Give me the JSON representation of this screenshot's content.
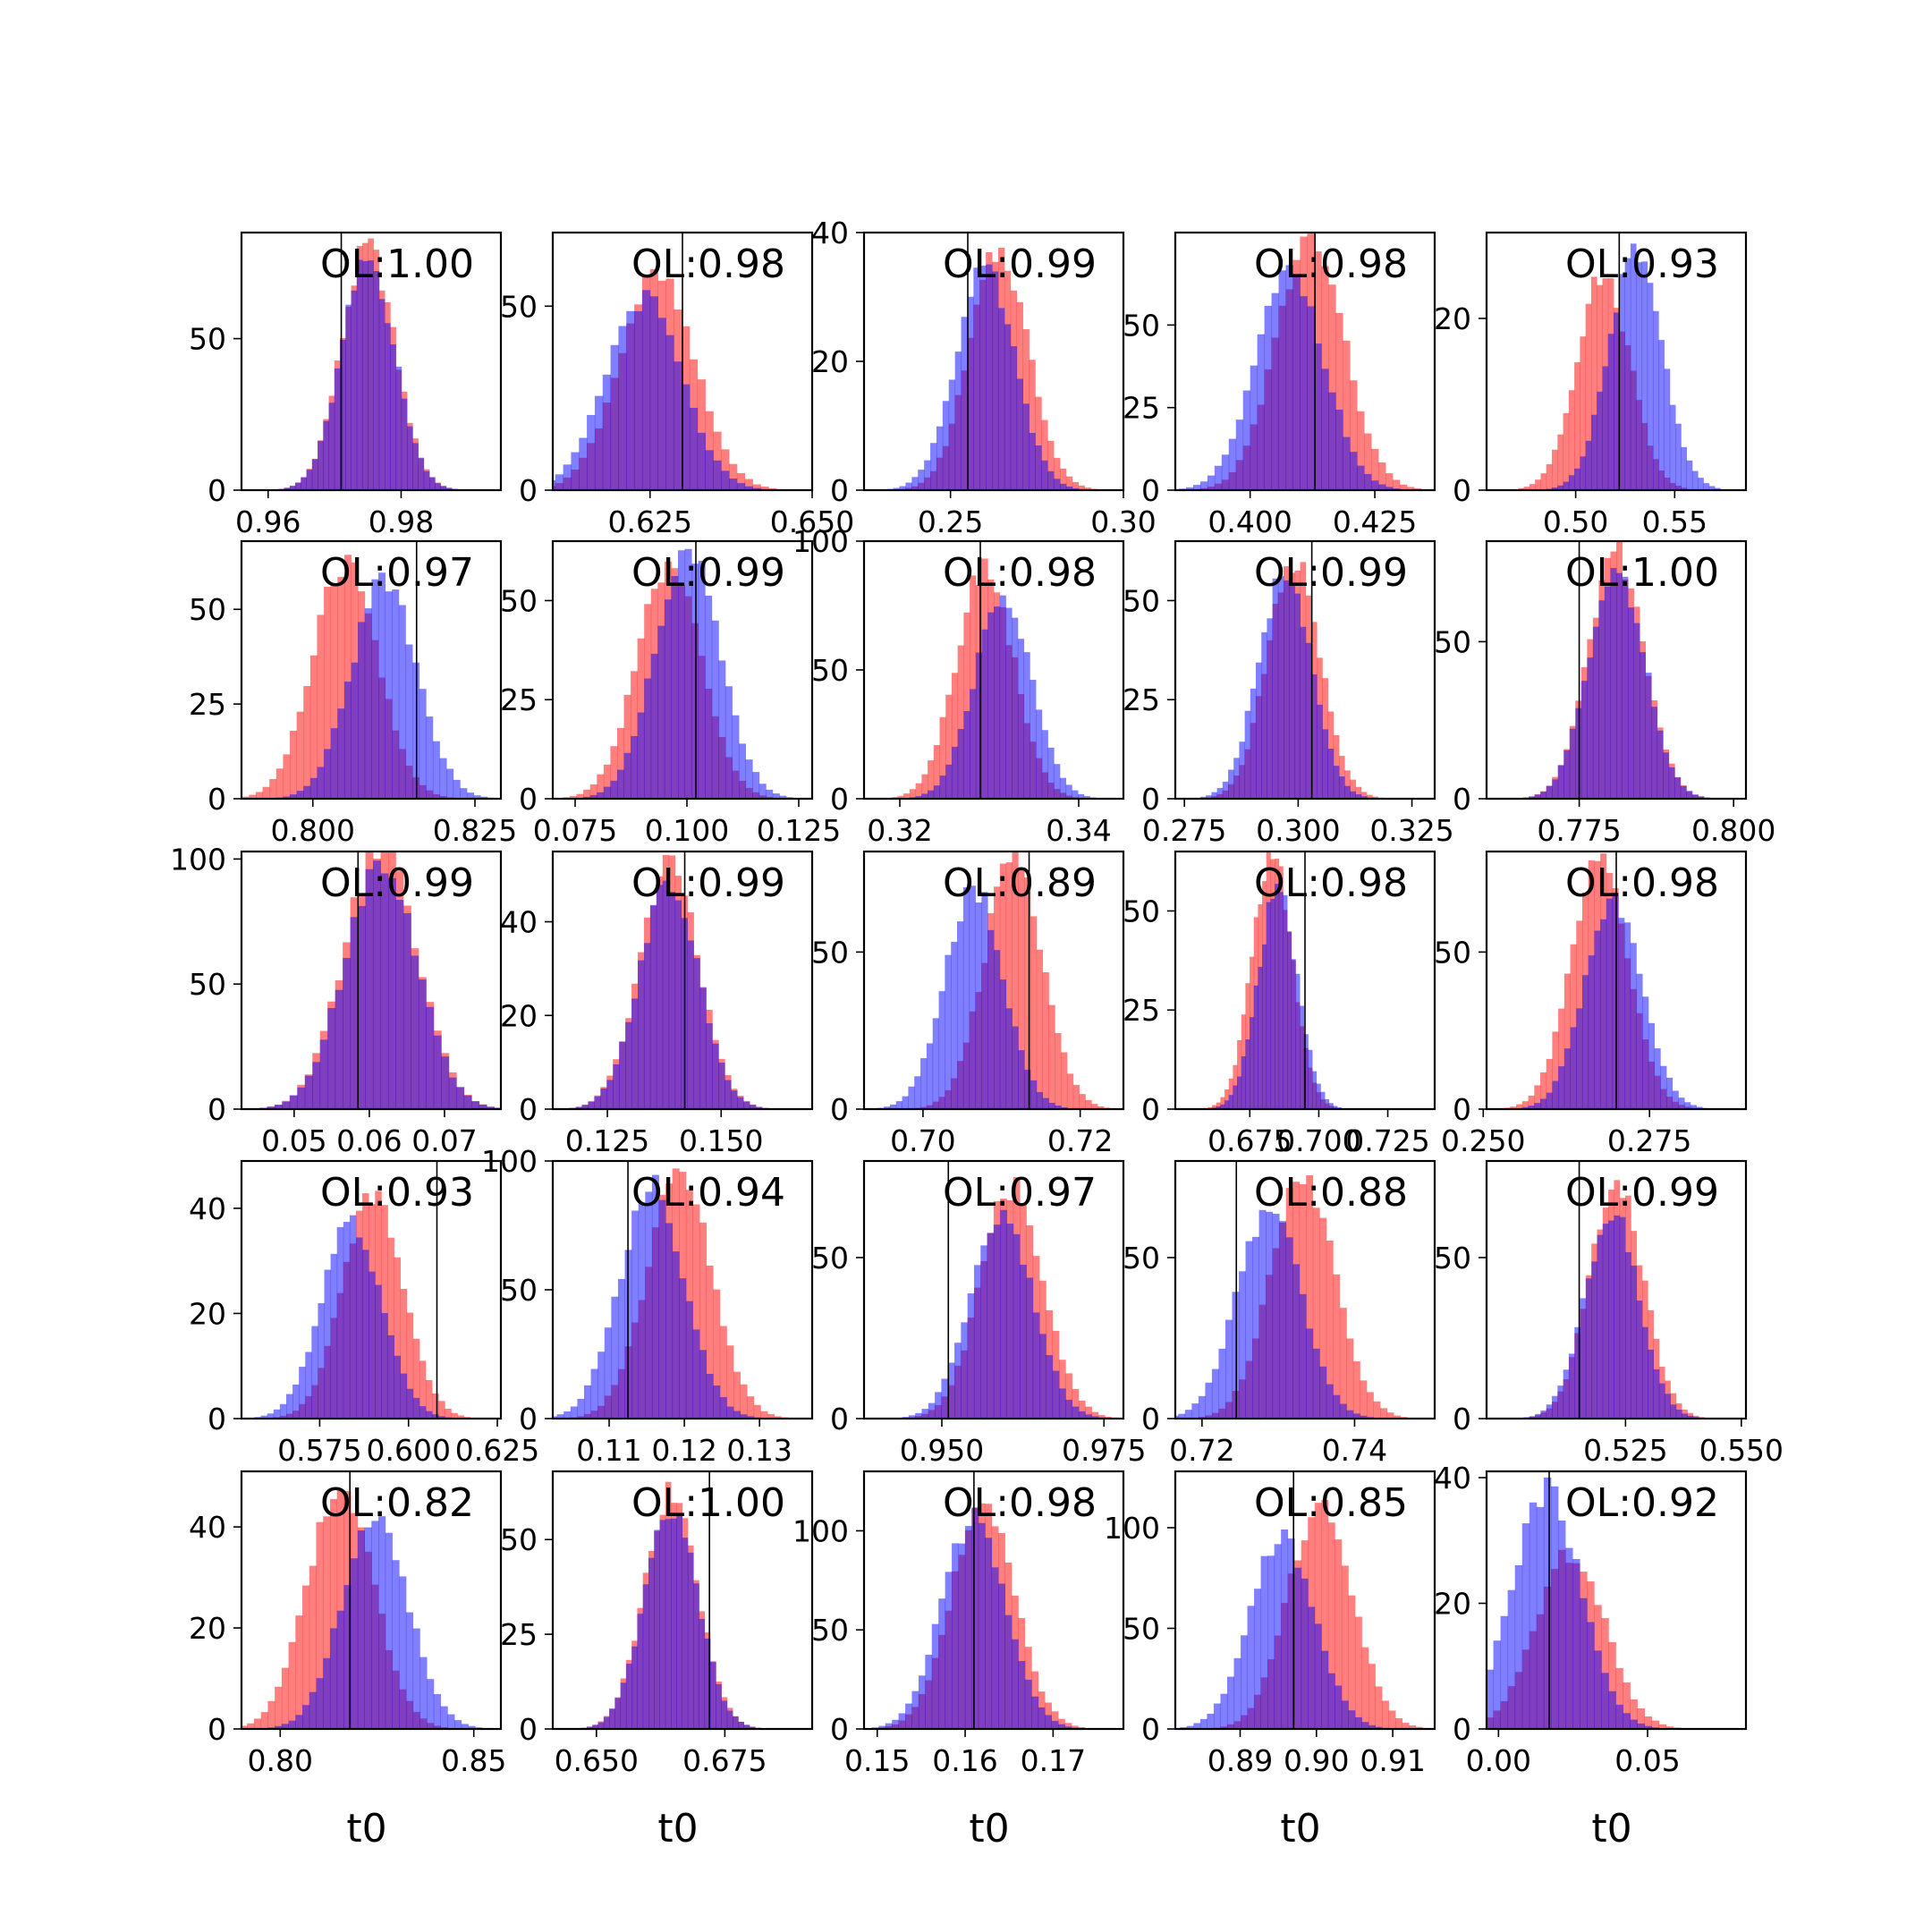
{
  "figure": {
    "xlabel": "t0",
    "colors": {
      "red": "#ff0000",
      "blue": "#0000ff",
      "overlap": "#7f3fbf",
      "axis": "#000000"
    }
  },
  "chart_data": [
    {
      "type": "histogram",
      "title": "OL:1.00",
      "center": 0.975,
      "spread": 0.004,
      "shift": 0,
      "red_peak": 80,
      "blue_peak": 76,
      "truth": 0.971,
      "xlim": [
        0.956,
        0.995
      ],
      "xticks": [
        0.96,
        0.98
      ],
      "xtick_labels": [
        "0.96",
        "0.98"
      ],
      "ylim": [
        0,
        85
      ],
      "yticks": [
        0,
        50
      ],
      "ytick_labels": [
        "0",
        "50"
      ]
    },
    {
      "type": "histogram",
      "title": "OL:0.98",
      "center": 0.625,
      "spread": 0.0058,
      "shift": 0.001,
      "red_peak": 58,
      "blue_peak": 52,
      "truth": 0.63,
      "xlim": [
        0.61,
        0.65
      ],
      "xticks": [
        0.625,
        0.65
      ],
      "xtick_labels": [
        "0.625",
        "0.650"
      ],
      "ylim": [
        0,
        70
      ],
      "yticks": [
        0,
        50
      ],
      "ytick_labels": [
        "0",
        "50"
      ]
    },
    {
      "type": "histogram",
      "title": "OL:0.99",
      "center": 0.262,
      "spread": 0.0085,
      "shift": 0.002,
      "red_peak": 37,
      "blue_peak": 34,
      "truth": 0.255,
      "xlim": [
        0.225,
        0.3
      ],
      "xticks": [
        0.25,
        0.3
      ],
      "xtick_labels": [
        "0.25",
        "0.30"
      ],
      "ylim": [
        0,
        40
      ],
      "yticks": [
        0,
        20,
        40
      ],
      "ytick_labels": [
        "0",
        "20",
        "40"
      ]
    },
    {
      "type": "histogram",
      "title": "OL:0.98",
      "center": 0.41,
      "spread": 0.0068,
      "shift": 0.002,
      "red_peak": 76,
      "blue_peak": 66,
      "truth": 0.413,
      "xlim": [
        0.385,
        0.437
      ],
      "xticks": [
        0.4,
        0.425
      ],
      "xtick_labels": [
        "0.400",
        "0.425"
      ],
      "ylim": [
        0,
        78
      ],
      "yticks": [
        0,
        25,
        50
      ],
      "ytick_labels": [
        "0",
        "25",
        "50"
      ]
    },
    {
      "type": "histogram",
      "title": "OL:0.93",
      "center": 0.522,
      "spread": 0.0135,
      "shift": -0.008,
      "red_peak": 25,
      "blue_peak": 28,
      "truth": 0.522,
      "xlim": [
        0.455,
        0.586
      ],
      "xticks": [
        0.5,
        0.55
      ],
      "xtick_labels": [
        "0.50",
        "0.55"
      ],
      "ylim": [
        0,
        30
      ],
      "yticks": [
        0,
        20
      ],
      "ytick_labels": [
        "0",
        "20"
      ]
    },
    {
      "type": "histogram",
      "title": "OL:0.97",
      "center": 0.808,
      "spread": 0.005,
      "shift": -0.003,
      "red_peak": 62,
      "blue_peak": 58,
      "truth": 0.816,
      "xlim": [
        0.789,
        0.829
      ],
      "xticks": [
        0.8,
        0.825
      ],
      "xtick_labels": [
        "0.800",
        "0.825"
      ],
      "ylim": [
        0,
        68
      ],
      "yticks": [
        0,
        25,
        50
      ],
      "ytick_labels": [
        "0",
        "25",
        "50"
      ]
    },
    {
      "type": "histogram",
      "title": "OL:0.99",
      "center": 0.098,
      "spread": 0.0072,
      "shift": -0.002,
      "red_peak": 58,
      "blue_peak": 63,
      "truth": 0.102,
      "xlim": [
        0.07,
        0.128
      ],
      "xticks": [
        0.075,
        0.1,
        0.125
      ],
      "xtick_labels": [
        "0.075",
        "0.100",
        "0.125"
      ],
      "ylim": [
        0,
        65
      ],
      "yticks": [
        0,
        25,
        50
      ],
      "ytick_labels": [
        "0",
        "25",
        "50"
      ]
    },
    {
      "type": "histogram",
      "title": "OL:0.98",
      "center": 0.3305,
      "spread": 0.0032,
      "shift": -0.001,
      "red_peak": 90,
      "blue_peak": 78,
      "truth": 0.329,
      "xlim": [
        0.316,
        0.345
      ],
      "xticks": [
        0.32,
        0.34
      ],
      "xtick_labels": [
        "0.32",
        "0.34"
      ],
      "ylim": [
        0,
        100
      ],
      "yticks": [
        0,
        50,
        100
      ],
      "ytick_labels": [
        "0",
        "50",
        "100"
      ]
    },
    {
      "type": "histogram",
      "title": "OL:0.99",
      "center": 0.298,
      "spread": 0.0058,
      "shift": 0.001,
      "red_peak": 60,
      "blue_peak": 56,
      "truth": 0.303,
      "xlim": [
        0.273,
        0.33
      ],
      "xticks": [
        0.275,
        0.3,
        0.325
      ],
      "xtick_labels": [
        "0.275",
        "0.300",
        "0.325"
      ],
      "ylim": [
        0,
        65
      ],
      "yticks": [
        0,
        25,
        50
      ],
      "ytick_labels": [
        "0",
        "25",
        "50"
      ]
    },
    {
      "type": "histogram",
      "title": "OL:1.00",
      "center": 0.781,
      "spread": 0.0045,
      "shift": 0,
      "red_peak": 78,
      "blue_peak": 74,
      "truth": 0.775,
      "xlim": [
        0.76,
        0.802
      ],
      "xticks": [
        0.775,
        0.8
      ],
      "xtick_labels": [
        "0.775",
        "0.800"
      ],
      "ylim": [
        0,
        82
      ],
      "yticks": [
        0,
        50
      ],
      "ytick_labels": [
        "0",
        "50"
      ]
    },
    {
      "type": "histogram",
      "title": "OL:0.99",
      "center": 0.0615,
      "spread": 0.0048,
      "shift": 0,
      "red_peak": 105,
      "blue_peak": 98,
      "truth": 0.0585,
      "xlim": [
        0.043,
        0.0775
      ],
      "xticks": [
        0.05,
        0.06,
        0.07
      ],
      "xtick_labels": [
        "0.05",
        "0.06",
        "0.07"
      ],
      "ylim": [
        0,
        103
      ],
      "yticks": [
        0,
        50,
        100
      ],
      "ytick_labels": [
        "0",
        "50",
        "100"
      ]
    },
    {
      "type": "histogram",
      "title": "OL:0.99",
      "center": 0.1385,
      "spread": 0.0065,
      "shift": 0,
      "red_peak": 52,
      "blue_peak": 48,
      "truth": 0.142,
      "xlim": [
        0.113,
        0.17
      ],
      "xticks": [
        0.125,
        0.15
      ],
      "xtick_labels": [
        "0.125",
        "0.150"
      ],
      "ylim": [
        0,
        55
      ],
      "yticks": [
        0,
        20,
        40
      ],
      "ytick_labels": [
        "0",
        "20",
        "40"
      ]
    },
    {
      "type": "histogram",
      "title": "OL:0.89",
      "center": 0.709,
      "spread": 0.0037,
      "shift": 0.0025,
      "red_peak": 80,
      "blue_peak": 70,
      "truth": 0.7135,
      "xlim": [
        0.6925,
        0.7255
      ],
      "xticks": [
        0.7,
        0.72
      ],
      "xtick_labels": [
        "0.70",
        "0.72"
      ],
      "ylim": [
        0,
        82
      ],
      "yticks": [
        0,
        50
      ],
      "ytick_labels": [
        "0",
        "50"
      ]
    },
    {
      "type": "histogram",
      "title": "OL:0.98",
      "center": 0.684,
      "spread": 0.0072,
      "shift": -0.001,
      "red_peak": 65,
      "blue_peak": 55,
      "truth": 0.695,
      "xlim": [
        0.648,
        0.742
      ],
      "xticks": [
        0.675,
        0.7,
        0.725
      ],
      "xtick_labels": [
        "0.675",
        "0.700",
        "0.725"
      ],
      "ylim": [
        0,
        65
      ],
      "yticks": [
        0,
        25,
        50
      ],
      "ytick_labels": [
        "0",
        "25",
        "50"
      ]
    },
    {
      "type": "histogram",
      "title": "OL:0.98",
      "center": 0.2685,
      "spread": 0.0043,
      "shift": -0.001,
      "red_peak": 78,
      "blue_peak": 66,
      "truth": 0.27,
      "xlim": [
        0.2505,
        0.2895
      ],
      "xticks": [
        0.25,
        0.275
      ],
      "xtick_labels": [
        "0.250",
        "0.275"
      ],
      "ylim": [
        0,
        82
      ],
      "yticks": [
        0,
        50
      ],
      "ytick_labels": [
        "0",
        "50"
      ]
    },
    {
      "type": "histogram",
      "title": "OL:0.93",
      "center": 0.587,
      "spread": 0.0085,
      "shift": 0.003,
      "red_peak": 42,
      "blue_peak": 37,
      "truth": 0.608,
      "xlim": [
        0.553,
        0.626
      ],
      "xticks": [
        0.575,
        0.6,
        0.625
      ],
      "xtick_labels": [
        "0.575",
        "0.600",
        "0.625"
      ],
      "ylim": [
        0,
        49
      ],
      "yticks": [
        0,
        20,
        40
      ],
      "ytick_labels": [
        "0",
        "20",
        "40"
      ]
    },
    {
      "type": "histogram",
      "title": "OL:0.94",
      "center": 0.1175,
      "spread": 0.0043,
      "shift": 0.0018,
      "red_peak": 95,
      "blue_peak": 90,
      "truth": 0.1125,
      "xlim": [
        0.1025,
        0.137
      ],
      "xticks": [
        0.11,
        0.12,
        0.13
      ],
      "xtick_labels": [
        "0.11",
        "0.12",
        "0.13"
      ],
      "ylim": [
        0,
        100
      ],
      "yticks": [
        0,
        50,
        100
      ],
      "ytick_labels": [
        "0",
        "50",
        "100"
      ]
    },
    {
      "type": "histogram",
      "title": "OL:0.97",
      "center": 0.96,
      "spread": 0.0048,
      "shift": 0.0008,
      "red_peak": 72,
      "blue_peak": 64,
      "truth": 0.951,
      "xlim": [
        0.938,
        0.978
      ],
      "xticks": [
        0.95,
        0.975
      ],
      "xtick_labels": [
        "0.950",
        "0.975"
      ],
      "ylim": [
        0,
        80
      ],
      "yticks": [
        0,
        50
      ],
      "ytick_labels": [
        "0",
        "50"
      ]
    },
    {
      "type": "histogram",
      "title": "OL:0.88",
      "center": 0.731,
      "spread": 0.0042,
      "shift": 0.0022,
      "red_peak": 75,
      "blue_peak": 65,
      "truth": 0.7245,
      "xlim": [
        0.7165,
        0.7505
      ],
      "xticks": [
        0.72,
        0.74
      ],
      "xtick_labels": [
        "0.72",
        "0.74"
      ],
      "ylim": [
        0,
        80
      ],
      "yticks": [
        0,
        50
      ],
      "ytick_labels": [
        "0",
        "50"
      ]
    },
    {
      "type": "histogram",
      "title": "OL:0.99",
      "center": 0.5225,
      "spread": 0.0058,
      "shift": 0.0005,
      "red_peak": 72,
      "blue_peak": 64,
      "truth": 0.515,
      "xlim": [
        0.495,
        0.551
      ],
      "xticks": [
        0.525,
        0.55
      ],
      "xtick_labels": [
        "0.525",
        "0.550"
      ],
      "ylim": [
        0,
        80
      ],
      "yticks": [
        0,
        50
      ],
      "ytick_labels": [
        "0",
        "50"
      ]
    },
    {
      "type": "histogram",
      "title": "OL:0.82",
      "center": 0.82,
      "spread": 0.0085,
      "shift": -0.0045,
      "red_peak": 48,
      "blue_peak": 42,
      "truth": 0.818,
      "xlim": [
        0.79,
        0.857
      ],
      "xticks": [
        0.8,
        0.85
      ],
      "xtick_labels": [
        "0.80",
        "0.85"
      ],
      "ylim": [
        0,
        51
      ],
      "yticks": [
        0,
        20,
        40
      ],
      "ytick_labels": [
        "0",
        "20",
        "40"
      ]
    },
    {
      "type": "histogram",
      "title": "OL:1.00",
      "center": 0.6645,
      "spread": 0.0052,
      "shift": 0,
      "red_peak": 62,
      "blue_peak": 58,
      "truth": 0.672,
      "xlim": [
        0.6415,
        0.692
      ],
      "xticks": [
        0.65,
        0.675
      ],
      "xtick_labels": [
        "0.650",
        "0.675"
      ],
      "ylim": [
        0,
        68
      ],
      "yticks": [
        0,
        25,
        50
      ],
      "ytick_labels": [
        "0",
        "25",
        "50"
      ]
    },
    {
      "type": "histogram",
      "title": "OL:0.98",
      "center": 0.1615,
      "spread": 0.0036,
      "shift": 0.0005,
      "red_peak": 112,
      "blue_peak": 106,
      "truth": 0.161,
      "xlim": [
        0.1485,
        0.178
      ],
      "xticks": [
        0.15,
        0.16,
        0.17
      ],
      "xtick_labels": [
        "0.15",
        "0.16",
        "0.17"
      ],
      "ylim": [
        0,
        130
      ],
      "yticks": [
        0,
        50,
        100
      ],
      "ytick_labels": [
        "0",
        "50",
        "100"
      ]
    },
    {
      "type": "histogram",
      "title": "OL:0.85",
      "center": 0.898,
      "spread": 0.0042,
      "shift": 0.0025,
      "red_peak": 112,
      "blue_peak": 95,
      "truth": 0.897,
      "xlim": [
        0.8815,
        0.9155
      ],
      "xticks": [
        0.89,
        0.9,
        0.91
      ],
      "xtick_labels": [
        "0.89",
        "0.90",
        "0.91"
      ],
      "ylim": [
        0,
        128
      ],
      "yticks": [
        0,
        50,
        100
      ],
      "ytick_labels": [
        "0",
        "50",
        "100"
      ]
    },
    {
      "type": "histogram",
      "title": "OL:0.92",
      "center": 0.02,
      "spread": 0.0115,
      "shift": 0.004,
      "red_peak": 28,
      "blue_peak": 38,
      "truth": 0.017,
      "xlim": [
        -0.004,
        0.083
      ],
      "xticks": [
        0,
        0.05
      ],
      "xtick_labels": [
        "0.00",
        "0.05"
      ],
      "ylim": [
        0,
        41
      ],
      "yticks": [
        0,
        20,
        40
      ],
      "ytick_labels": [
        "0",
        "20",
        "40"
      ]
    }
  ]
}
